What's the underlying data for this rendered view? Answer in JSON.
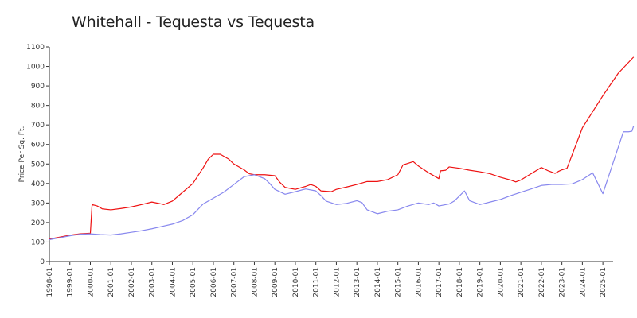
{
  "chart_data": {
    "type": "line",
    "title": "Whitehall - Tequesta vs Tequesta",
    "xlabel": "",
    "ylabel": "Price Per Sq. Ft.",
    "ylim": [
      0,
      1100
    ],
    "xlim": [
      "1998-01",
      "2025-07"
    ],
    "yticks": [
      0,
      100,
      200,
      300,
      400,
      500,
      600,
      700,
      800,
      900,
      1000,
      1100
    ],
    "xticks": [
      "1998-01",
      "1999-01",
      "2000-01",
      "2001-01",
      "2002-01",
      "2003-01",
      "2004-01",
      "2005-01",
      "2006-01",
      "2007-01",
      "2008-01",
      "2009-01",
      "2010-01",
      "2011-01",
      "2012-01",
      "2013-01",
      "2014-01",
      "2015-01",
      "2016-01",
      "2017-01",
      "2018-01",
      "2019-01",
      "2020-01",
      "2021-01",
      "2022-01",
      "2023-01",
      "2024-01",
      "2025-01"
    ],
    "grid": false,
    "legend": "none",
    "series": [
      {
        "color": "#ee1111",
        "points": [
          [
            "1998-01",
            115
          ],
          [
            "1998-07",
            125
          ],
          [
            "1999-01",
            135
          ],
          [
            "1999-07",
            142
          ],
          [
            "2000-01",
            145
          ],
          [
            "2000-02",
            292
          ],
          [
            "2000-05",
            285
          ],
          [
            "2000-08",
            270
          ],
          [
            "2001-01",
            265
          ],
          [
            "2001-07",
            272
          ],
          [
            "2002-01",
            280
          ],
          [
            "2002-07",
            292
          ],
          [
            "2003-01",
            305
          ],
          [
            "2003-05",
            298
          ],
          [
            "2003-08",
            292
          ],
          [
            "2004-01",
            310
          ],
          [
            "2004-07",
            355
          ],
          [
            "2005-01",
            400
          ],
          [
            "2005-07",
            480
          ],
          [
            "2005-10",
            525
          ],
          [
            "2006-01",
            550
          ],
          [
            "2006-05",
            550
          ],
          [
            "2006-10",
            525
          ],
          [
            "2007-01",
            500
          ],
          [
            "2007-07",
            470
          ],
          [
            "2007-10",
            450
          ],
          [
            "2008-01",
            445
          ],
          [
            "2008-07",
            445
          ],
          [
            "2009-01",
            440
          ],
          [
            "2009-04",
            405
          ],
          [
            "2009-07",
            380
          ],
          [
            "2010-01",
            370
          ],
          [
            "2010-07",
            385
          ],
          [
            "2010-10",
            395
          ],
          [
            "2011-01",
            385
          ],
          [
            "2011-04",
            362
          ],
          [
            "2011-10",
            358
          ],
          [
            "2012-01",
            370
          ],
          [
            "2012-07",
            382
          ],
          [
            "2013-01",
            395
          ],
          [
            "2013-07",
            410
          ],
          [
            "2014-01",
            410
          ],
          [
            "2014-07",
            420
          ],
          [
            "2015-01",
            445
          ],
          [
            "2015-04",
            495
          ],
          [
            "2015-10",
            512
          ],
          [
            "2016-01",
            490
          ],
          [
            "2016-07",
            455
          ],
          [
            "2017-01",
            425
          ],
          [
            "2017-02",
            465
          ],
          [
            "2017-05",
            468
          ],
          [
            "2017-07",
            485
          ],
          [
            "2018-01",
            478
          ],
          [
            "2018-07",
            468
          ],
          [
            "2019-01",
            460
          ],
          [
            "2019-07",
            450
          ],
          [
            "2020-01",
            432
          ],
          [
            "2020-07",
            418
          ],
          [
            "2020-10",
            408
          ],
          [
            "2021-01",
            418
          ],
          [
            "2021-07",
            450
          ],
          [
            "2022-01",
            482
          ],
          [
            "2022-05",
            465
          ],
          [
            "2022-09",
            452
          ],
          [
            "2022-11",
            462
          ],
          [
            "2023-01",
            470
          ],
          [
            "2023-04",
            478
          ],
          [
            "2024-01",
            685
          ],
          [
            "2025-01",
            850
          ],
          [
            "2025-10",
            965
          ],
          [
            "2026-07",
            1048
          ]
        ]
      },
      {
        "color": "#8888ee",
        "points": [
          [
            "1998-01",
            112
          ],
          [
            "1998-07",
            122
          ],
          [
            "1999-01",
            132
          ],
          [
            "1999-07",
            140
          ],
          [
            "2000-01",
            142
          ],
          [
            "2000-07",
            138
          ],
          [
            "2001-01",
            136
          ],
          [
            "2001-07",
            142
          ],
          [
            "2002-01",
            150
          ],
          [
            "2002-07",
            158
          ],
          [
            "2003-01",
            168
          ],
          [
            "2003-07",
            180
          ],
          [
            "2004-01",
            192
          ],
          [
            "2004-07",
            210
          ],
          [
            "2005-01",
            240
          ],
          [
            "2005-07",
            295
          ],
          [
            "2006-01",
            325
          ],
          [
            "2006-07",
            355
          ],
          [
            "2007-01",
            395
          ],
          [
            "2007-07",
            435
          ],
          [
            "2008-01",
            445
          ],
          [
            "2008-07",
            425
          ],
          [
            "2008-10",
            400
          ],
          [
            "2009-01",
            370
          ],
          [
            "2009-07",
            345
          ],
          [
            "2010-01",
            358
          ],
          [
            "2010-07",
            372
          ],
          [
            "2011-01",
            362
          ],
          [
            "2011-04",
            338
          ],
          [
            "2011-07",
            310
          ],
          [
            "2012-01",
            292
          ],
          [
            "2012-07",
            298
          ],
          [
            "2013-01",
            312
          ],
          [
            "2013-04",
            302
          ],
          [
            "2013-07",
            265
          ],
          [
            "2014-01",
            245
          ],
          [
            "2014-07",
            258
          ],
          [
            "2015-01",
            265
          ],
          [
            "2015-07",
            285
          ],
          [
            "2016-01",
            300
          ],
          [
            "2016-07",
            292
          ],
          [
            "2016-10",
            300
          ],
          [
            "2017-01",
            285
          ],
          [
            "2017-07",
            295
          ],
          [
            "2017-10",
            310
          ],
          [
            "2018-04",
            362
          ],
          [
            "2018-07",
            312
          ],
          [
            "2019-01",
            292
          ],
          [
            "2019-07",
            305
          ],
          [
            "2020-01",
            318
          ],
          [
            "2020-07",
            338
          ],
          [
            "2021-01",
            355
          ],
          [
            "2021-07",
            372
          ],
          [
            "2022-01",
            390
          ],
          [
            "2022-07",
            395
          ],
          [
            "2023-01",
            395
          ],
          [
            "2023-07",
            398
          ],
          [
            "2024-01",
            420
          ],
          [
            "2024-07",
            455
          ],
          [
            "2025-01",
            348
          ],
          [
            "2026-01",
            665
          ],
          [
            "2026-04",
            665
          ],
          [
            "2026-06",
            668
          ],
          [
            "2026-07",
            695
          ]
        ]
      }
    ]
  }
}
